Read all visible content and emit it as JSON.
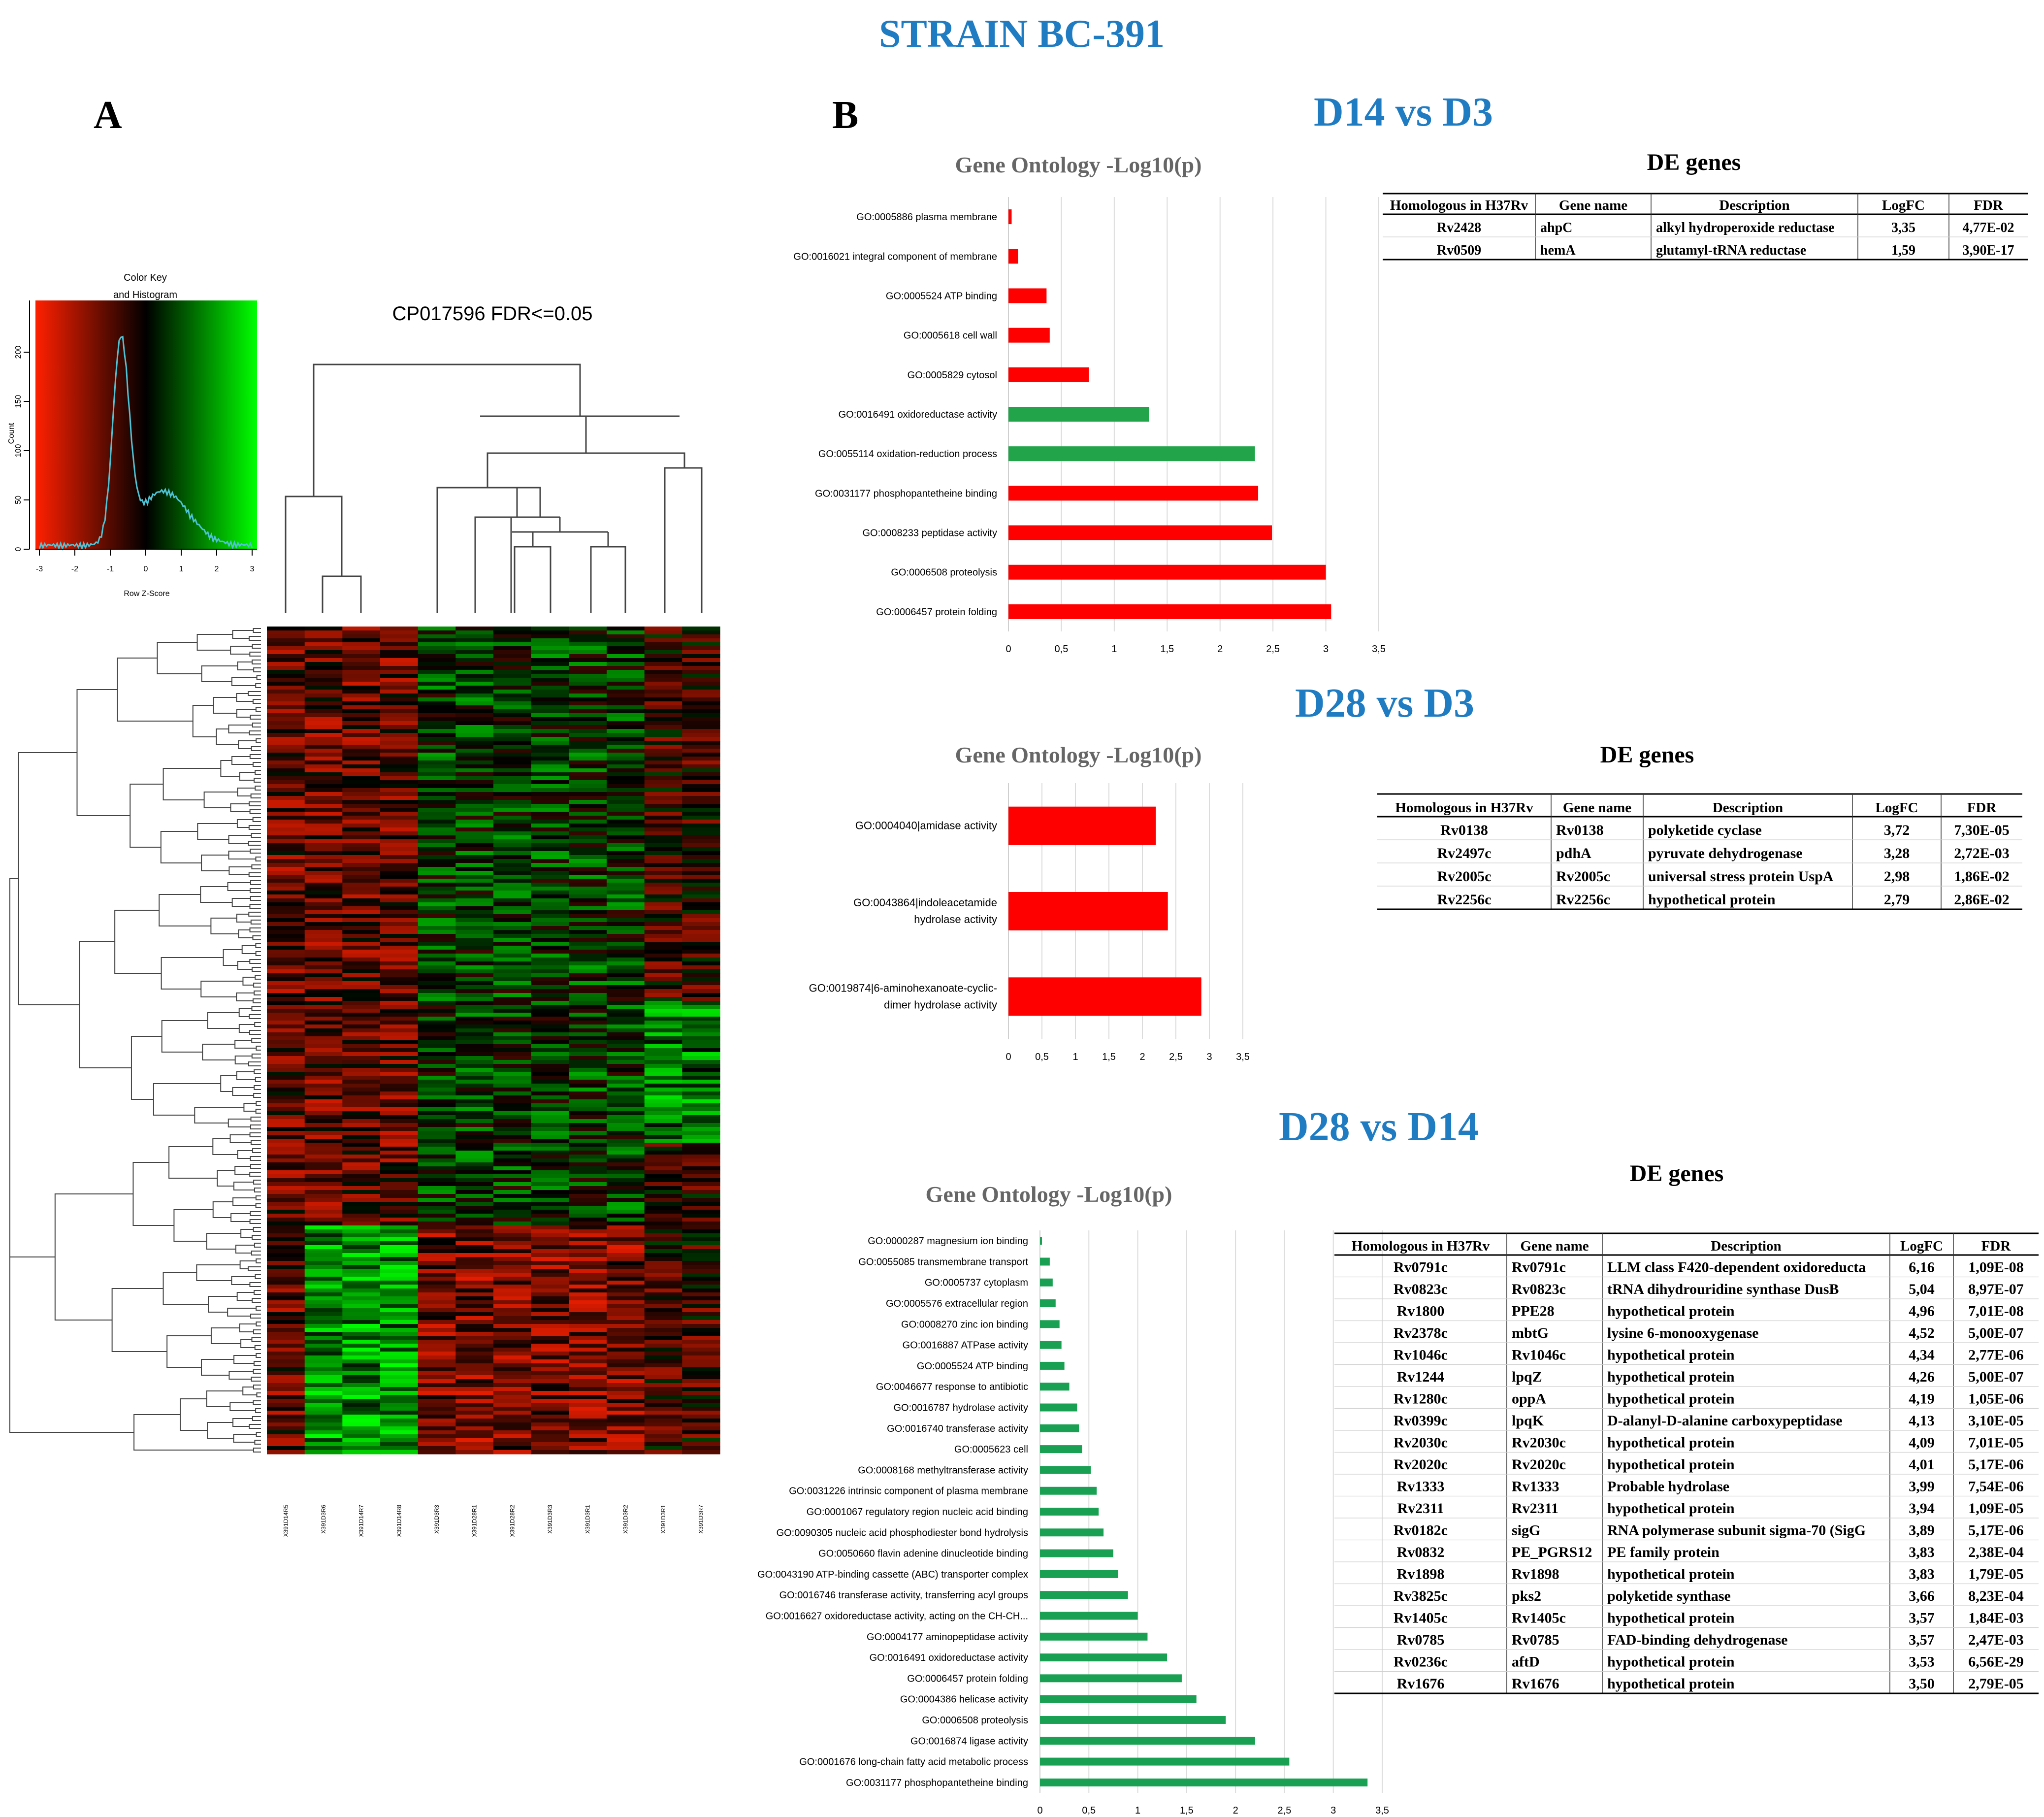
{
  "main_title": "STRAIN BC-391",
  "panel_a": {
    "letter": "A"
  },
  "panel_b": {
    "letter": "B"
  },
  "heatmap": {
    "title": "CP017596 FDR<=0.05",
    "color_key_title": "Color Key",
    "color_key_subtitle": "and Histogram",
    "color_key_xlabel": "Row Z-Score",
    "color_key_ylabel": "Count",
    "color_key_xticks": [
      "-3",
      "-2",
      "-1",
      "0",
      "1",
      "2",
      "3"
    ],
    "color_key_yticks": [
      "0",
      "50",
      "100",
      "150",
      "200"
    ],
    "colors": {
      "low": "#ff2000",
      "mid": "#000000",
      "high": "#00ff00"
    },
    "samples": [
      "X391D14R5",
      "X391D3R6",
      "X391D14R7",
      "X391D14R8",
      "X391D3R3",
      "X391D28R1",
      "X391D28R2",
      "X391D3R3",
      "X391D3R1",
      "X391D3R2",
      "X391D3R1",
      "X391D3R7"
    ]
  },
  "chart_data": [
    {
      "type": "bar",
      "orientation": "horizontal",
      "comparison": "D14 vs D3",
      "title": "Gene Ontology -Log10(p)",
      "categories": [
        "GO:0005886 plasma membrane",
        "GO:0016021 integral component of membrane",
        "GO:0005524 ATP binding",
        "GO:0005618 cell wall",
        "GO:0005829 cytosol",
        "GO:0016491 oxidoreductase activity",
        "GO:0055114 oxidation-reduction process",
        "GO:0031177 phosphopantetheine binding",
        "GO:0008233 peptidase activity",
        "GO:0006508 proteolysis",
        "GO:0006457 protein folding"
      ],
      "values": [
        0.03,
        0.09,
        0.36,
        0.39,
        0.76,
        1.33,
        2.33,
        2.36,
        2.49,
        3.0,
        3.05
      ],
      "bar_colors": [
        "#ff0000",
        "#ff0000",
        "#ff0000",
        "#ff0000",
        "#ff0000",
        "#22a54a",
        "#22a54a",
        "#ff0000",
        "#ff0000",
        "#ff0000",
        "#ff0000"
      ],
      "xticks": [
        "0",
        "0,5",
        "1",
        "1,5",
        "2",
        "2,5",
        "3",
        "3,5"
      ],
      "xlim": [
        0,
        3.5
      ]
    },
    {
      "type": "bar",
      "orientation": "horizontal",
      "comparison": "D28 vs D3",
      "title": "Gene Ontology -Log10(p)",
      "categories": [
        "GO:0004040|amidase activity",
        "GO:0043864|indoleacetamide hydrolase activity",
        "GO:0019874|6-aminohexanoate-cyclic-dimer hydrolase activity"
      ],
      "category_lines": [
        [
          "GO:0004040|amidase activity"
        ],
        [
          "GO:0043864|indoleacetamide",
          "hydrolase activity"
        ],
        [
          "GO:0019874|6-aminohexanoate-cyclic-",
          "dimer hydrolase activity"
        ]
      ],
      "values": [
        2.2,
        2.38,
        2.88
      ],
      "bar_colors": [
        "#ff0000",
        "#ff0000",
        "#ff0000"
      ],
      "xticks": [
        "0",
        "0,5",
        "1",
        "1,5",
        "2",
        "2,5",
        "3",
        "3,5"
      ],
      "xlim": [
        0,
        3.5
      ]
    },
    {
      "type": "bar",
      "orientation": "horizontal",
      "comparison": "D28 vs D14",
      "title": "Gene Ontology -Log10(p)",
      "categories": [
        "GO:0000287 magnesium ion binding",
        "GO:0055085 transmembrane transport",
        "GO:0005737 cytoplasm",
        "GO:0005576 extracellular region",
        "GO:0008270 zinc ion binding",
        "GO:0016887 ATPase activity",
        "GO:0005524 ATP binding",
        "GO:0046677 response to antibiotic",
        "GO:0016787 hydrolase activity",
        "GO:0016740 transferase activity",
        "GO:0005623 cell",
        "GO:0008168 methyltransferase activity",
        "GO:0031226 intrinsic component of plasma membrane",
        "GO:0001067 regulatory region nucleic acid binding",
        "GO:0090305 nucleic acid phosphodiester bond hydrolysis",
        "GO:0050660 flavin adenine dinucleotide binding",
        "GO:0043190 ATP-binding cassette (ABC) transporter complex",
        "GO:0016746 transferase activity, transferring acyl groups",
        "GO:0016627 oxidoreductase activity, acting on the CH-CH...",
        "GO:0004177 aminopeptidase activity",
        "GO:0016491 oxidoreductase activity",
        "GO:0006457 protein folding",
        "GO:0004386 helicase activity",
        "GO:0006508 proteolysis",
        "GO:0016874 ligase activity",
        "GO:0001676 long-chain fatty acid metabolic process",
        "GO:0031177 phosphopantetheine binding"
      ],
      "values": [
        0.02,
        0.1,
        0.13,
        0.16,
        0.2,
        0.22,
        0.25,
        0.3,
        0.38,
        0.4,
        0.43,
        0.52,
        0.58,
        0.6,
        0.65,
        0.75,
        0.8,
        0.9,
        1.0,
        1.1,
        1.3,
        1.45,
        1.6,
        1.9,
        2.2,
        2.55,
        3.35
      ],
      "bar_colors": [
        "#1aa052"
      ],
      "xticks": [
        "0",
        "0,5",
        "1",
        "1,5",
        "2",
        "2,5",
        "3",
        "3,5"
      ],
      "xlim": [
        0,
        3.5
      ]
    }
  ],
  "comparisons": [
    {
      "title": "D14 vs D3",
      "de_title": "DE genes",
      "headers": [
        "Homologous in H37Rv",
        "Gene name",
        "Description",
        "LogFC",
        "FDR"
      ],
      "rows": [
        [
          "Rv2428",
          "ahpC",
          "alkyl hydroperoxide reductase",
          "3,35",
          "4,77E-02"
        ],
        [
          "Rv0509",
          "hemA",
          "glutamyl-tRNA reductase",
          "1,59",
          "3,90E-17"
        ]
      ]
    },
    {
      "title": "D28 vs D3",
      "de_title": "DE genes",
      "headers": [
        "Homologous in H37Rv",
        "Gene name",
        "Description",
        "LogFC",
        "FDR"
      ],
      "rows": [
        [
          "Rv0138",
          "Rv0138",
          "polyketide cyclase",
          "3,72",
          "7,30E-05"
        ],
        [
          "Rv2497c",
          "pdhA",
          "pyruvate dehydrogenase",
          "3,28",
          "2,72E-03"
        ],
        [
          "Rv2005c",
          "Rv2005c",
          "universal stress protein UspA",
          "2,98",
          "1,86E-02"
        ],
        [
          "Rv2256c",
          "Rv2256c",
          "hypothetical protein",
          "2,79",
          "2,86E-02"
        ]
      ]
    },
    {
      "title": "D28 vs D14",
      "de_title": "DE genes",
      "headers": [
        "Homologous in H37Rv",
        "Gene name",
        "Description",
        "LogFC",
        "FDR"
      ],
      "rows": [
        [
          "Rv0791c",
          "Rv0791c",
          "LLM class F420-dependent oxidoreducta",
          "6,16",
          "1,09E-08"
        ],
        [
          "Rv0823c",
          "Rv0823c",
          "tRNA dihydrouridine synthase DusB",
          "5,04",
          "8,97E-07"
        ],
        [
          "Rv1800",
          "PPE28",
          "hypothetical protein",
          "4,96",
          "7,01E-08"
        ],
        [
          "Rv2378c",
          "mbtG",
          "lysine 6-monooxygenase",
          "4,52",
          "5,00E-07"
        ],
        [
          "Rv1046c",
          "Rv1046c",
          "hypothetical protein",
          "4,34",
          "2,77E-06"
        ],
        [
          "Rv1244",
          "lpqZ",
          "hypothetical protein",
          "4,26",
          "5,00E-07"
        ],
        [
          "Rv1280c",
          "oppA",
          "hypothetical protein",
          "4,19",
          "1,05E-06"
        ],
        [
          "Rv0399c",
          "lpqK",
          "D-alanyl-D-alanine carboxypeptidase",
          "4,13",
          "3,10E-05"
        ],
        [
          "Rv2030c",
          "Rv2030c",
          "hypothetical protein",
          "4,09",
          "7,01E-05"
        ],
        [
          "Rv2020c",
          "Rv2020c",
          "hypothetical protein",
          "4,01",
          "5,17E-06"
        ],
        [
          "Rv1333",
          "Rv1333",
          "Probable hydrolase",
          "3,99",
          "7,54E-06"
        ],
        [
          "Rv2311",
          "Rv2311",
          "hypothetical protein",
          "3,94",
          "1,09E-05"
        ],
        [
          "Rv0182c",
          "sigG",
          "RNA polymerase subunit sigma-70 (SigG",
          "3,89",
          "5,17E-06"
        ],
        [
          "Rv0832",
          "PE_PGRS12",
          "PE family protein",
          "3,83",
          "2,38E-04"
        ],
        [
          "Rv1898",
          "Rv1898",
          "hypothetical protein",
          "3,83",
          "1,79E-05"
        ],
        [
          "Rv3825c",
          "pks2",
          "polyketide synthase",
          "3,66",
          "8,23E-04"
        ],
        [
          "Rv1405c",
          "Rv1405c",
          "hypothetical protein",
          "3,57",
          "1,84E-03"
        ],
        [
          "Rv0785",
          "Rv0785",
          "FAD-binding dehydrogenase",
          "3,57",
          "2,47E-03"
        ],
        [
          "Rv0236c",
          "aftD",
          "hypothetical protein",
          "3,53",
          "6,56E-29"
        ],
        [
          "Rv1676",
          "Rv1676",
          "hypothetical protein",
          "3,50",
          "2,79E-05"
        ]
      ]
    }
  ]
}
